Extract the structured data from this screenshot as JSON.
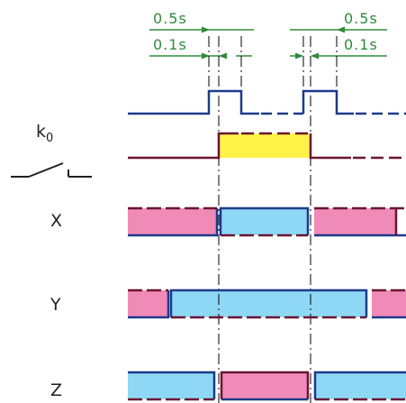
{
  "title": "",
  "colors": {
    "navy": "#1d3a8a",
    "maroon": "#6b1430",
    "green": "#2e8b3a",
    "yellow": "#fff34a",
    "blue_fill": "#8fd8f5",
    "pink_fill": "#f08bb8",
    "guide": "#000000"
  },
  "dimensions": {
    "left_outer": "0.5s",
    "left_inner": "0.1s",
    "right_outer": "0.5s",
    "right_inner": "0.1s"
  },
  "rows": {
    "pulse": {
      "label": ""
    },
    "k0": {
      "label": "k",
      "subscript": "0"
    },
    "contact": {
      "label": "",
      "icon": "switch-contact-icon"
    },
    "x": {
      "label": "X"
    },
    "y": {
      "label": "Y"
    },
    "z": {
      "label": "Z"
    }
  }
}
